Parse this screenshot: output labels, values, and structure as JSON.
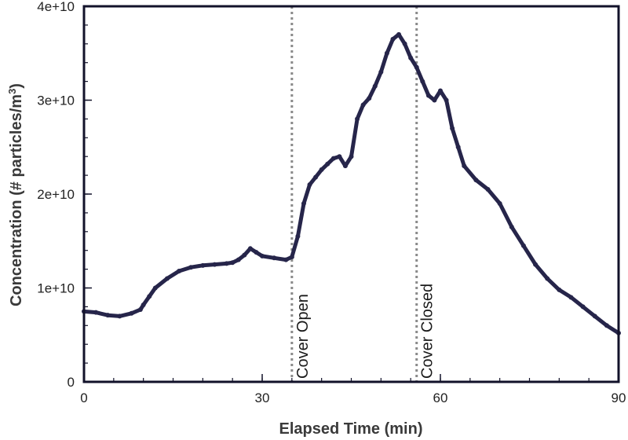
{
  "chart_data": {
    "type": "scatter",
    "xlabel": "Elapsed Time (min)",
    "ylabel_main": "Concentration (# particles/m",
    "ylabel_sup": "3",
    "ylabel_close": ")",
    "xlim": [
      0,
      90
    ],
    "ylim": [
      0,
      40000000000
    ],
    "x_ticks": [
      0,
      30,
      60,
      90
    ],
    "x_tick_labels": [
      "0",
      "30",
      "60",
      "90"
    ],
    "x_minor_step": 5,
    "y_ticks": [
      0,
      10000000000,
      20000000000,
      30000000000,
      40000000000
    ],
    "y_tick_labels": [
      "0",
      "1e+10",
      "2e+10",
      "3e+10",
      "4e+10"
    ],
    "y_minor_step": 2000000000,
    "grid": false,
    "legend": "none",
    "marker_color": "#26254a",
    "vline_color": "#8a8a8a",
    "annotations": [
      {
        "x": 35,
        "label": "Cover Open"
      },
      {
        "x": 56,
        "label": "Cover Closed"
      }
    ],
    "series": [
      {
        "x": [
          0,
          2,
          4,
          6,
          8,
          9.5,
          10,
          11,
          12,
          14,
          16,
          18,
          20,
          22,
          24,
          25,
          26,
          27,
          28,
          29,
          30,
          32,
          34,
          35,
          36,
          37,
          38,
          39,
          40,
          41,
          42,
          43,
          44,
          45,
          46,
          47,
          48,
          49,
          50,
          51,
          52,
          53,
          54,
          55,
          56,
          57,
          58,
          59,
          60,
          61,
          62,
          63,
          64,
          66,
          68,
          70,
          72,
          74,
          76,
          78,
          80,
          82,
          84,
          86,
          88,
          90
        ],
        "y": [
          7500000000,
          7400000000,
          7100000000,
          7000000000,
          7300000000,
          7700000000,
          8200000000,
          9100000000,
          10000000000,
          11000000000,
          11800000000,
          12200000000,
          12400000000,
          12500000000,
          12600000000,
          12700000000,
          13000000000,
          13500000000,
          14200000000,
          13800000000,
          13400000000,
          13200000000,
          13000000000,
          13300000000,
          15500000000,
          19000000000,
          21000000000,
          21800000000,
          22600000000,
          23200000000,
          23800000000,
          24000000000,
          23000000000,
          24000000000,
          28000000000,
          29500000000,
          30200000000,
          31500000000,
          33000000000,
          35000000000,
          36500000000,
          37000000000,
          36000000000,
          34500000000,
          33500000000,
          32000000000,
          30500000000,
          30000000000,
          31000000000,
          30000000000,
          27000000000,
          25000000000,
          23000000000,
          21500000000,
          20500000000,
          19000000000,
          16500000000,
          14500000000,
          12500000000,
          11000000000,
          9800000000,
          9000000000,
          8000000000,
          7000000000,
          6000000000,
          5200000000
        ]
      }
    ]
  }
}
